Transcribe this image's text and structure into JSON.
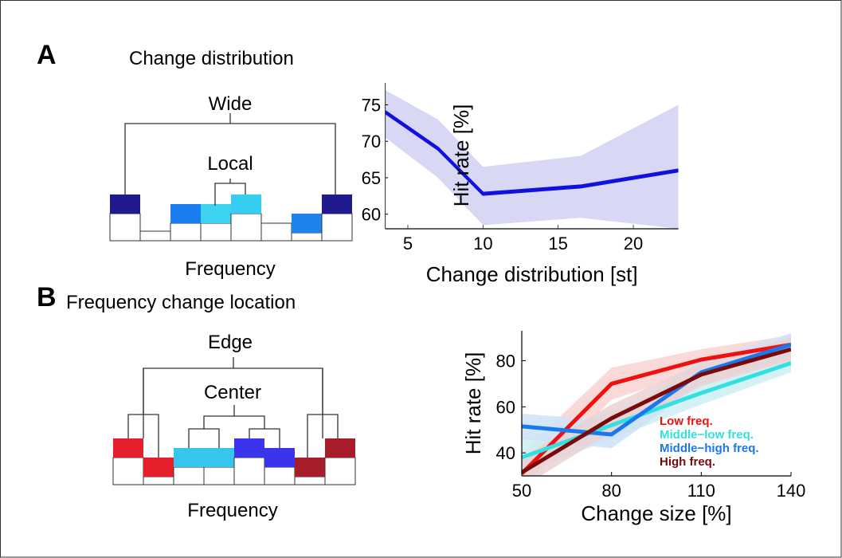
{
  "panels": {
    "a": {
      "letter": "A",
      "diagram": {
        "title": "Change distribution",
        "top_label": "Wide",
        "inner_label": "Local",
        "axis_label": "Frequency",
        "cells": [
          {
            "fill": "#201a8f",
            "level": 0.45
          },
          {
            "fill": null,
            "level": 0
          },
          {
            "fill": "#1b7ef0",
            "level": 0.45
          },
          {
            "fill": "#3cd2f1",
            "level": 0.45
          },
          {
            "fill": "#37cdf1",
            "level": 0.45
          },
          {
            "fill": null,
            "level": 0
          },
          {
            "fill": "#1c83ef",
            "level": 0.45
          },
          {
            "fill": "#201a8f",
            "level": 0.45
          }
        ]
      }
    },
    "b": {
      "letter": "B",
      "diagram": {
        "title": "Frequency change location",
        "top_label": "Edge",
        "inner_label": "Center",
        "axis_label": "Frequency",
        "cells": [
          {
            "fill": "#e5202c",
            "level": 0.45
          },
          {
            "fill": "#e5202c",
            "level": 0.45
          },
          {
            "fill": "#35c6ee",
            "level": 0.45
          },
          {
            "fill": "#35c6ee",
            "level": 0.45
          },
          {
            "fill": "#3b34ec",
            "level": 0.45
          },
          {
            "fill": "#3b34ec",
            "level": 0.45
          },
          {
            "fill": "#a81d2a",
            "level": 0.45
          },
          {
            "fill": "#a81d2a",
            "level": 0.45
          }
        ]
      }
    }
  },
  "chart_data": [
    {
      "type": "line",
      "xlabel": "Change distribution [st]",
      "ylabel": "Hit rate [%]",
      "xlim": [
        3.5,
        23
      ],
      "ylim": [
        58,
        78
      ],
      "xticks": [
        5,
        10,
        15,
        20
      ],
      "yticks": [
        60,
        65,
        70,
        75
      ],
      "grid": false,
      "series": [
        {
          "color": "#1010e0",
          "band_color": "#d8d8f4",
          "x": [
            3.5,
            7,
            10,
            16.5,
            23
          ],
          "y": [
            74,
            69,
            62.8,
            63.8,
            66
          ],
          "upper": [
            77,
            73,
            66.5,
            68,
            75
          ],
          "lower": [
            70.5,
            65,
            58.5,
            59.5,
            58
          ]
        }
      ]
    },
    {
      "type": "line",
      "xlabel": "Change size [%]",
      "ylabel": "Hit rate [%]",
      "xlim": [
        50,
        140
      ],
      "ylim": [
        30,
        93
      ],
      "xticks": [
        50,
        80,
        110,
        140
      ],
      "yticks": [
        40,
        60,
        80
      ],
      "grid": false,
      "legend": "inside right",
      "x": [
        50,
        80,
        110,
        140
      ],
      "series": [
        {
          "name": "Low freq.",
          "color": "#f01010",
          "band_color": "#f9d2d2",
          "values": [
            31,
            70,
            80.5,
            87
          ],
          "upper": [
            40,
            77,
            85,
            91
          ],
          "lower": [
            25,
            63,
            76,
            83
          ]
        },
        {
          "name": "Middle−low freq.",
          "color": "#33e0e0",
          "band_color": "#cdeff3",
          "values": [
            38,
            52,
            66,
            79
          ],
          "upper": [
            46,
            58,
            71,
            84
          ],
          "lower": [
            31,
            46,
            61,
            75
          ]
        },
        {
          "name": "Middle−high freq.",
          "color": "#1a78ee",
          "band_color": "#cfe2f8",
          "values": [
            51.5,
            48,
            75,
            87
          ],
          "upper": [
            57,
            54,
            80,
            92
          ],
          "lower": [
            46,
            42,
            70,
            82
          ]
        },
        {
          "name": "High freq.",
          "color": "#7a0a0a",
          "band_color": "#ead2d2",
          "values": [
            31.5,
            55,
            74,
            85
          ],
          "upper": [
            38,
            61,
            79,
            90
          ],
          "lower": [
            25,
            49,
            69,
            80
          ]
        }
      ]
    }
  ]
}
